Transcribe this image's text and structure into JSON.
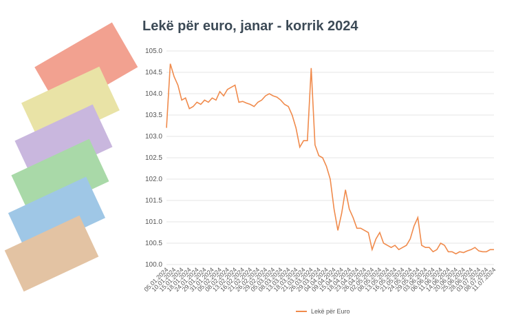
{
  "chart_data": {
    "type": "line",
    "title": "Lekë për euro, janar - korrik 2024",
    "categories": [
      "05.01.2024",
      null,
      "10.01.2024",
      null,
      "15.01.2024",
      null,
      "18.01.2024",
      null,
      "24.01.2024",
      null,
      "29.01.2024",
      null,
      "31.01.2024",
      null,
      "05.02.2024",
      null,
      "08.02.2024",
      null,
      "13.02.2024",
      null,
      "16.02.2024",
      null,
      "21.02.2024",
      null,
      "26.02.2024",
      null,
      "29.02.2024",
      null,
      "05.03.2024",
      null,
      "08.03.2024",
      null,
      "13.03.2024",
      null,
      "18.03.2024",
      null,
      "21.03.2024",
      null,
      "26.03.2024",
      null,
      "29.03.2024",
      null,
      "04.04.2024",
      null,
      "09.04.2024",
      null,
      "15.04.2024",
      null,
      "18.04.2024",
      null,
      "23.04.2024",
      null,
      "26.04.2024",
      null,
      "02.05.2024",
      null,
      "08.05.2024",
      null,
      "13.05.2024",
      null,
      "16.05.2024",
      null,
      "21.05.2024",
      null,
      "24.05.2024",
      null,
      "29.05.2024",
      null,
      "03.06.2024",
      null,
      "06.06.2024",
      null,
      "11.06.2024",
      null,
      "14.06.2024",
      null,
      "20.06.2024",
      null,
      "25.06.2024",
      null,
      "28.06.2024",
      null,
      "03.07.2024",
      null,
      "08.07.2024",
      null,
      "11.07.2024"
    ],
    "series": [
      {
        "name": "Lekë për Euro",
        "color": "#f08a4b",
        "values": [
          103.2,
          104.7,
          104.4,
          104.2,
          103.85,
          103.9,
          103.65,
          103.7,
          103.8,
          103.75,
          103.85,
          103.8,
          103.9,
          103.85,
          104.05,
          103.95,
          104.1,
          104.15,
          104.2,
          103.8,
          103.82,
          103.78,
          103.75,
          103.7,
          103.8,
          103.85,
          103.95,
          104.0,
          103.95,
          103.92,
          103.85,
          103.75,
          103.7,
          103.5,
          103.2,
          102.75,
          102.9,
          102.9,
          104.6,
          102.8,
          102.55,
          102.5,
          102.3,
          102.0,
          101.3,
          100.8,
          101.2,
          101.75,
          101.3,
          101.1,
          100.85,
          100.85,
          100.8,
          100.75,
          100.35,
          100.6,
          100.75,
          100.5,
          100.45,
          100.4,
          100.45,
          100.35,
          100.4,
          100.45,
          100.6,
          100.9,
          101.1,
          100.45,
          100.4,
          100.4,
          100.3,
          100.35,
          100.5,
          100.45,
          100.3,
          100.3,
          100.25,
          100.3,
          100.28,
          100.32,
          100.35,
          100.4,
          100.32,
          100.3,
          100.3,
          100.35,
          100.35
        ]
      }
    ],
    "ylim": [
      100,
      105
    ],
    "yticks": [
      {
        "value": 100,
        "label": "100.0"
      },
      100.5,
      {
        "value": 101,
        "label": "101.0"
      },
      101.5,
      {
        "value": 102,
        "label": "102.0"
      },
      102.5,
      {
        "value": 103,
        "label": "103.0"
      },
      103.5,
      {
        "value": 104,
        "label": "104.0"
      },
      104.5,
      {
        "value": 105,
        "label": "105.0"
      }
    ],
    "grid": true
  }
}
